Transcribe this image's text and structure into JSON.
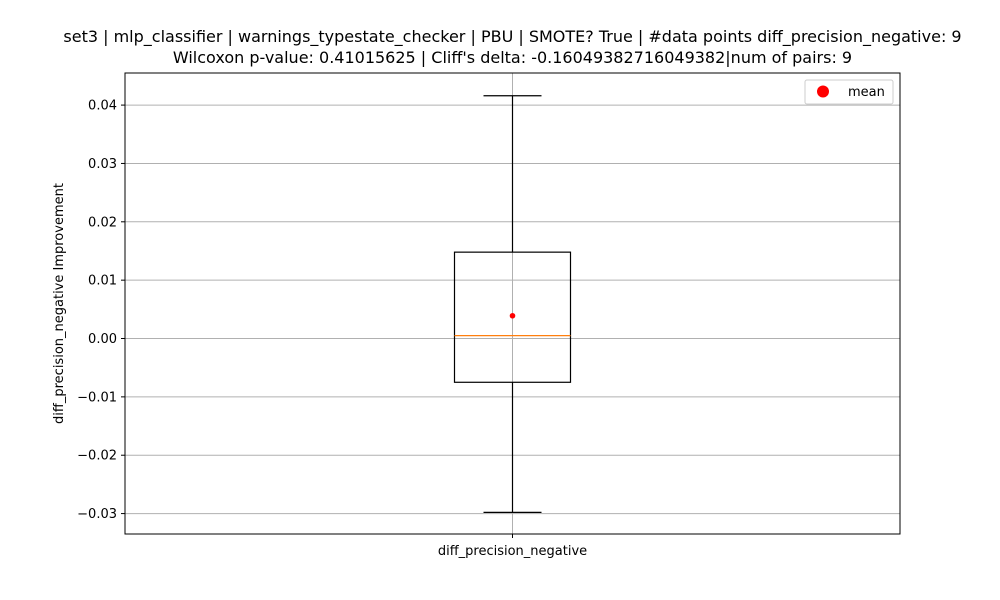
{
  "chart_data": {
    "type": "box",
    "title_line1": "set3 | mlp_classifier | warnings_typestate_checker | PBU | SMOTE? True | #data points diff_precision_negative: 9",
    "title_line2": "Wilcoxon p-value: 0.41015625 | Cliff's delta: -0.16049382716049382|num of pairs: 9",
    "xlabel": "",
    "ylabel": "diff_precision_negative Improvement",
    "categories": [
      "diff_precision_negative"
    ],
    "ylim": [
      -0.0335,
      0.0455
    ],
    "yticks": [
      -0.03,
      -0.02,
      -0.01,
      0.0,
      0.01,
      0.02,
      0.03,
      0.04
    ],
    "ytick_labels": [
      "−0.03",
      "−0.02",
      "−0.01",
      "0.00",
      "0.01",
      "0.02",
      "0.03",
      "0.04"
    ],
    "box": {
      "whisker_low": -0.0298,
      "q1": -0.0075,
      "median": 0.0005,
      "q3": 0.0148,
      "whisker_high": 0.0416,
      "mean": 0.0039
    },
    "legend": {
      "label": "mean",
      "position": "top-right"
    },
    "grid": true,
    "colors": {
      "box": "#000000",
      "median": "#ff7f0e",
      "mean": "#ff0000",
      "grid": "#b0b0b0"
    }
  }
}
